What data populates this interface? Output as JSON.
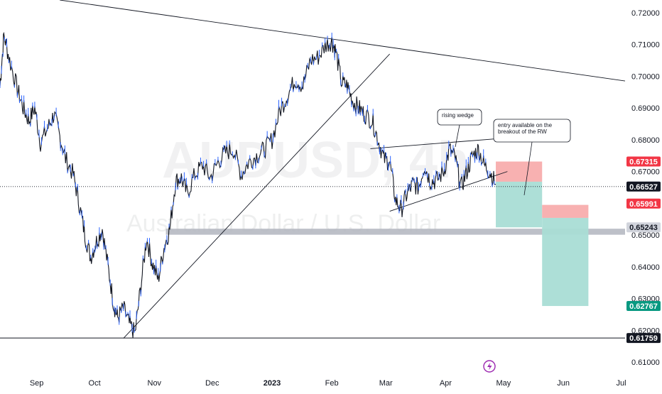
{
  "chart_data": {
    "type": "line",
    "symbol_watermark": "AUDUSD, 4h",
    "name_watermark": "Australian Dollar / U.S. Dollar",
    "x_labels": [
      "Sep",
      "Oct",
      "Nov",
      "Dec",
      "2023",
      "Feb",
      "Mar",
      "Apr",
      "May",
      "Jun",
      "Jul"
    ],
    "x_label_dates": [
      "2022-09-01",
      "2022-10-01",
      "2022-11-01",
      "2022-12-01",
      "2023-01-01",
      "2023-02-01",
      "2023-03-01",
      "2023-04-01",
      "2023-05-01",
      "2023-06-01",
      "2023-07-01"
    ],
    "y_ticks": [
      0.72,
      0.71,
      0.7,
      0.69,
      0.68,
      0.67,
      0.65,
      0.64,
      0.63,
      0.62,
      0.61
    ],
    "y_tick_labels": [
      "0.72000",
      "0.71000",
      "0.70000",
      "0.69000",
      "0.68000",
      "0.67000",
      "0.65000",
      "0.64000",
      "0.63000",
      "0.62000",
      "0.61000"
    ],
    "ylim": [
      0.606,
      0.724
    ],
    "xlim": [
      "2022-08-13",
      "2023-07-03"
    ],
    "series": [
      {
        "x": [
          "2022-08-13",
          "2022-08-15",
          "2022-08-18",
          "2022-08-22",
          "2022-08-25",
          "2022-08-28",
          "2022-08-31",
          "2022-09-03",
          "2022-09-07",
          "2022-09-10",
          "2022-09-13",
          "2022-09-16",
          "2022-09-20",
          "2022-09-23",
          "2022-09-26",
          "2022-09-29",
          "2022-10-02",
          "2022-10-05",
          "2022-10-08",
          "2022-10-11",
          "2022-10-13",
          "2022-10-16",
          "2022-10-19",
          "2022-10-22",
          "2022-10-25",
          "2022-10-28",
          "2022-10-31",
          "2022-11-03",
          "2022-11-06",
          "2022-11-09",
          "2022-11-12",
          "2022-11-15",
          "2022-11-18",
          "2022-11-22",
          "2022-11-26",
          "2022-11-30",
          "2022-12-04",
          "2022-12-08",
          "2022-12-12",
          "2022-12-16",
          "2022-12-20",
          "2022-12-24",
          "2022-12-28",
          "2023-01-01",
          "2023-01-05",
          "2023-01-09",
          "2023-01-13",
          "2023-01-17",
          "2023-01-21",
          "2023-01-25",
          "2023-01-29",
          "2023-02-01",
          "2023-02-03",
          "2023-02-06",
          "2023-02-09",
          "2023-02-12",
          "2023-02-15",
          "2023-02-18",
          "2023-02-22",
          "2023-02-25",
          "2023-02-28",
          "2023-03-03",
          "2023-03-06",
          "2023-03-09",
          "2023-03-12",
          "2023-03-15",
          "2023-03-18",
          "2023-03-21",
          "2023-03-24",
          "2023-03-27",
          "2023-03-31",
          "2023-04-03",
          "2023-04-06",
          "2023-04-09",
          "2023-04-12",
          "2023-04-15",
          "2023-04-18",
          "2023-04-21",
          "2023-04-24",
          "2023-04-27"
        ],
        "values": [
          0.697,
          0.713,
          0.705,
          0.696,
          0.69,
          0.686,
          0.69,
          0.679,
          0.684,
          0.688,
          0.681,
          0.674,
          0.669,
          0.66,
          0.65,
          0.643,
          0.648,
          0.652,
          0.64,
          0.628,
          0.624,
          0.627,
          0.622,
          0.619,
          0.634,
          0.649,
          0.641,
          0.636,
          0.646,
          0.652,
          0.667,
          0.668,
          0.663,
          0.669,
          0.672,
          0.668,
          0.673,
          0.676,
          0.677,
          0.669,
          0.673,
          0.675,
          0.677,
          0.68,
          0.689,
          0.694,
          0.699,
          0.697,
          0.705,
          0.706,
          0.71,
          0.711,
          0.708,
          0.698,
          0.697,
          0.692,
          0.69,
          0.688,
          0.686,
          0.68,
          0.674,
          0.673,
          0.661,
          0.658,
          0.663,
          0.666,
          0.665,
          0.672,
          0.667,
          0.667,
          0.67,
          0.677,
          0.674,
          0.665,
          0.67,
          0.675,
          0.677,
          0.672,
          0.67,
          0.666
        ]
      }
    ],
    "price_tags": [
      {
        "value": 0.67315,
        "label": "0.67315",
        "color": "#f23645",
        "text_color": "#ffffff"
      },
      {
        "value": 0.66527,
        "label": "0.66527",
        "color": "#131722",
        "text_color": "#ffffff"
      },
      {
        "value": 0.65991,
        "label": "0.65991",
        "color": "#f23645",
        "text_color": "#ffffff"
      },
      {
        "value": 0.65243,
        "label": "0.65243",
        "color": "#d1d4dc",
        "text_color": "#131722"
      },
      {
        "value": 0.62767,
        "label": "0.62767",
        "color": "#089981",
        "text_color": "#ffffff"
      },
      {
        "value": 0.61759,
        "label": "0.61759",
        "color": "#131722",
        "text_color": "#ffffff"
      }
    ],
    "annotations": [
      {
        "text": "rising wedge"
      },
      {
        "text": "entry available on the breakout of the RW"
      }
    ],
    "colors": {
      "price_line": "#131722",
      "stop_zone": "#f7a8a8",
      "target_zone": "#a9ddd5",
      "support_band": "#b2b5be",
      "up_candle": "#2962ff"
    },
    "trendlines": [
      {
        "from": [
          "2022-09-13",
          0.724
        ],
        "to": [
          "2023-07-03",
          0.6985
        ]
      },
      {
        "from": [
          "2022-10-16",
          0.6175
        ],
        "to": [
          "2023-03-03",
          0.707
        ]
      },
      {
        "from": [
          "2023-02-21",
          0.6772
        ],
        "to": [
          "2023-04-27",
          0.6803
        ]
      },
      {
        "from": [
          "2023-03-03",
          0.6575
        ],
        "to": [
          "2023-05-03",
          0.67
        ]
      }
    ],
    "horizontal_lines": [
      {
        "value": 0.61759,
        "style": "solid"
      },
      {
        "value": 0.66527,
        "style": "dotted"
      }
    ],
    "support_band": {
      "from": "2022-11-07",
      "to": "2023-07-03",
      "low": 0.651,
      "high": 0.652
    },
    "positions": [
      {
        "from": "2023-04-27",
        "to": "2023-05-21",
        "entry": 0.6668,
        "stop": 0.67315,
        "target": 0.65243
      },
      {
        "from": "2023-05-21",
        "to": "2023-06-14",
        "entry": 0.65991,
        "stop": 0.65991,
        "target": 0.62767,
        "stop_top": 0.6595,
        "stop_bottom": 0.6554
      }
    ]
  }
}
